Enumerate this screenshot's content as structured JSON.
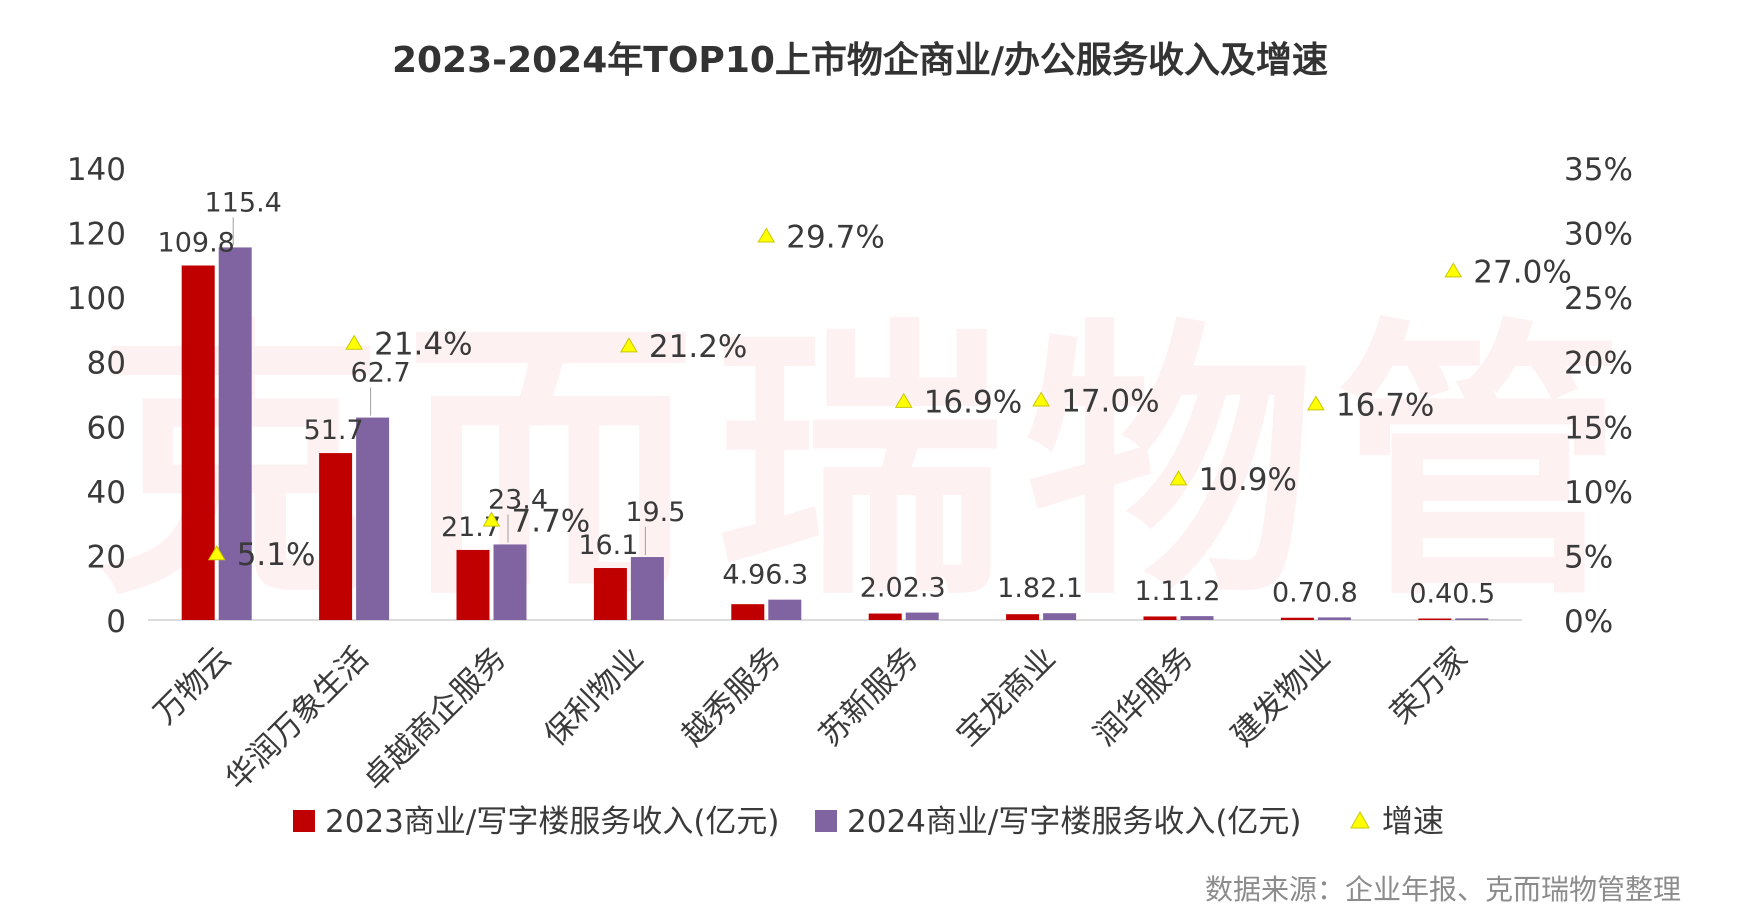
{
  "chart_data": {
    "type": "bar",
    "title": "2023-2024年TOP10上市物企商业/办公服务收入及增速",
    "categories": [
      "万物云",
      "华润万象生活",
      "卓越商企服务",
      "保利物业",
      "越秀服务",
      "苏新服务",
      "宝龙商业",
      "润华服务",
      "建发物业",
      "荣万家"
    ],
    "series": [
      {
        "name": "2023商业/写字楼服务收入(亿元)",
        "values": [
          109.8,
          51.7,
          21.7,
          16.1,
          4.9,
          2.0,
          1.8,
          1.1,
          0.7,
          0.4
        ],
        "labels": [
          "109.8",
          "51.7",
          "21.7",
          "16.1",
          "4.9",
          "2.0",
          "1.8",
          "1.1",
          "0.7",
          "0.4"
        ],
        "color": "#c00000",
        "axis": "left"
      },
      {
        "name": "2024商业/写字楼服务收入(亿元)",
        "values": [
          115.4,
          62.7,
          23.4,
          19.5,
          6.3,
          2.3,
          2.1,
          1.2,
          0.8,
          0.5
        ],
        "labels": [
          "115.4",
          "62.7",
          "23.4",
          "19.5",
          "6.3",
          "2.3",
          "2.1",
          "1.2",
          "0.8",
          "0.5"
        ],
        "color": "#8064a2",
        "axis": "left"
      },
      {
        "name": "增速",
        "type": "scatter",
        "marker": "triangle",
        "values": [
          5.1,
          21.4,
          7.7,
          21.2,
          29.7,
          16.9,
          17.0,
          10.9,
          16.7,
          27.0
        ],
        "labels": [
          "5.1%",
          "21.4%",
          "7.7%",
          "21.2%",
          "29.7%",
          "16.9%",
          "17.0%",
          "10.9%",
          "16.7%",
          "27.0%"
        ],
        "color": "#ffff00",
        "axis": "right"
      }
    ],
    "y_left": {
      "ylim": [
        0,
        140
      ],
      "ticks": [
        0,
        20,
        40,
        60,
        80,
        100,
        120,
        140
      ],
      "tick_labels": [
        "0",
        "20",
        "40",
        "60",
        "80",
        "100",
        "120",
        "140"
      ]
    },
    "y_right": {
      "ylim": [
        0,
        35
      ],
      "ticks": [
        0,
        5,
        10,
        15,
        20,
        25,
        30,
        35
      ],
      "tick_labels": [
        "0%",
        "5%",
        "10%",
        "15%",
        "20%",
        "25%",
        "30%",
        "35%"
      ]
    },
    "legend": {
      "position": "bottom",
      "items": [
        "2023商业/写字楼服务收入(亿元)",
        "2024商业/写字楼服务收入(亿元)",
        "增速"
      ]
    },
    "grid": false,
    "watermark": "克而瑞物管"
  },
  "source_note": "数据来源：企业年报、克而瑞物管整理"
}
